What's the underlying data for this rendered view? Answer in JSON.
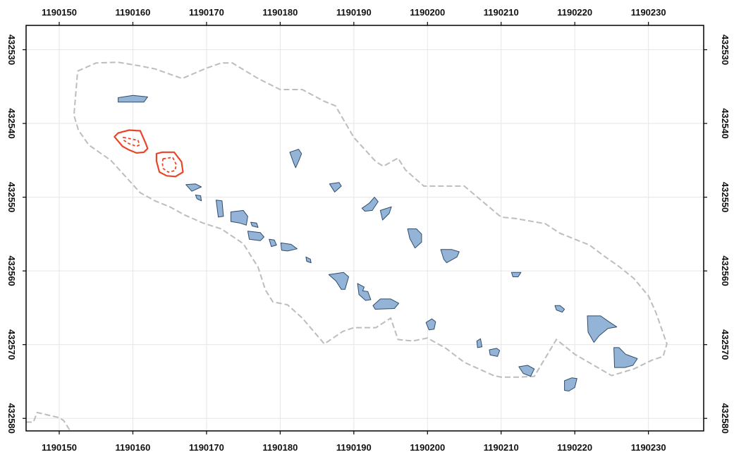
{
  "map": {
    "colors": {
      "background": "#ffffff",
      "frame": "#000000",
      "grid": "#e6e6e6",
      "boundary": "#bdbdbd",
      "polygon_fill": "#93b4d6",
      "polygon_stroke": "#2e4c6e",
      "highlight": "#e8462a"
    },
    "x_axis": {
      "range": [
        1190145.5,
        1190237.5
      ],
      "ticks": [
        1190150,
        1190160,
        1190170,
        1190180,
        1190190,
        1190200,
        1190210,
        1190220,
        1190230
      ],
      "labels": [
        "1190150",
        "1190160",
        "1190170",
        "1190180",
        "1190190",
        "1190200",
        "1190210",
        "1190220",
        "1190230"
      ]
    },
    "y_axis": {
      "range": [
        432526.7,
        432581.7
      ],
      "ticks": [
        432530,
        432540,
        432550,
        432560,
        432570,
        432580
      ],
      "labels": [
        "432530",
        "432540",
        "432550",
        "432560",
        "432570",
        "432580"
      ],
      "direction": "increasing-downward"
    },
    "grid": true,
    "boundary_polygon": [
      [
        1190152.5,
        432532.9
      ],
      [
        1190155,
        432531.8
      ],
      [
        1190158,
        432531.7
      ],
      [
        1190161,
        432532.2
      ],
      [
        1190163,
        432532.6
      ],
      [
        1190166.7,
        432533.9
      ],
      [
        1190170,
        432532.5
      ],
      [
        1190172,
        432531.8
      ],
      [
        1190173.5,
        432531.8
      ],
      [
        1190177,
        432533.9
      ],
      [
        1190180,
        432535.4
      ],
      [
        1190183,
        432535.4
      ],
      [
        1190186,
        432537
      ],
      [
        1190187.5,
        432537.6
      ],
      [
        1190190,
        432541.9
      ],
      [
        1190193,
        432545.2
      ],
      [
        1190194,
        432545.8
      ],
      [
        1190196,
        432544.7
      ],
      [
        1190197,
        432546.3
      ],
      [
        1190199.5,
        432548.5
      ],
      [
        1190201.5,
        432548.5
      ],
      [
        1190205,
        432548.5
      ],
      [
        1190210,
        432552.7
      ],
      [
        1190212,
        432552.9
      ],
      [
        1190216,
        432553.6
      ],
      [
        1190218,
        432554.9
      ],
      [
        1190222,
        432556.5
      ],
      [
        1190224,
        432558
      ],
      [
        1190226,
        432559.4
      ],
      [
        1190228,
        432561
      ],
      [
        1190230,
        432563.4
      ],
      [
        1190231,
        432565.6
      ],
      [
        1190232.5,
        432569.9
      ],
      [
        1190232,
        432571.6
      ],
      [
        1190230.5,
        432572.1
      ],
      [
        1190228,
        432573.3
      ],
      [
        1190225,
        432574.2
      ],
      [
        1190220,
        432571.3
      ],
      [
        1190217.5,
        432569.3
      ],
      [
        1190214.5,
        432574.3
      ],
      [
        1190212.5,
        432574.4
      ],
      [
        1190210,
        432574.4
      ],
      [
        1190209,
        432574.2
      ],
      [
        1190207,
        432573.3
      ],
      [
        1190205,
        432572.4
      ],
      [
        1190202.5,
        432570.5
      ],
      [
        1190200,
        432569.1
      ],
      [
        1190198,
        432569.5
      ],
      [
        1190196,
        432569.3
      ],
      [
        1190195,
        432566.4
      ],
      [
        1190193,
        432567.7
      ],
      [
        1190190,
        432567.7
      ],
      [
        1190188.5,
        432568.2
      ],
      [
        1190186,
        432569.9
      ],
      [
        1190183,
        432566.4
      ],
      [
        1190181,
        432564.6
      ],
      [
        1190179,
        432564.2
      ],
      [
        1190178,
        432562.6
      ],
      [
        1190177,
        432559.5
      ],
      [
        1190175,
        432556.3
      ],
      [
        1190172,
        432554.3
      ],
      [
        1190169.5,
        432553.5
      ],
      [
        1190167,
        432552.4
      ],
      [
        1190165,
        432551.3
      ],
      [
        1190163,
        432550.5
      ],
      [
        1190161,
        432549.4
      ],
      [
        1190159,
        432547.2
      ],
      [
        1190157,
        432545
      ],
      [
        1190154,
        432542.9
      ],
      [
        1190152.6,
        432540.9
      ],
      [
        1190152,
        432538.9
      ],
      [
        1190152.5,
        432532.9
      ]
    ],
    "boundary_corner_polygon": [
      [
        1190145.5,
        432580.5
      ],
      [
        1190146.5,
        432580.5
      ],
      [
        1190147,
        432579.2
      ],
      [
        1190150,
        432579.9
      ],
      [
        1190150.6,
        432580.3
      ],
      [
        1190151.5,
        432581.7
      ]
    ],
    "polygons": [
      [
        [
          1190158,
          432536.5
        ],
        [
          1190160,
          432536.2
        ],
        [
          1190162,
          432536.4
        ],
        [
          1190161.5,
          432537.1
        ],
        [
          1190158,
          432537.1
        ]
      ],
      [
        [
          1190167.2,
          432548.3
        ],
        [
          1190168.5,
          432548.2
        ],
        [
          1190169.3,
          432548.6
        ],
        [
          1190168,
          432549.2
        ]
      ],
      [
        [
          1190168.5,
          432549.7
        ],
        [
          1190169.2,
          432549.8
        ],
        [
          1190169.3,
          432550.5
        ],
        [
          1190168.7,
          432550.2
        ]
      ],
      [
        [
          1190171.3,
          432550.4
        ],
        [
          1190172.1,
          432550.5
        ],
        [
          1190172.3,
          432552.6
        ],
        [
          1190171.6,
          432552.7
        ]
      ],
      [
        [
          1190173.3,
          432552
        ],
        [
          1190175,
          432551.8
        ],
        [
          1190175.6,
          432552.6
        ],
        [
          1190175.4,
          432553.8
        ],
        [
          1190174.5,
          432553.5
        ],
        [
          1190173.3,
          432553.3
        ]
      ],
      [
        [
          1190176,
          432553.4
        ],
        [
          1190176.8,
          432553.5
        ],
        [
          1190177,
          432554.1
        ],
        [
          1190176.2,
          432553.9
        ]
      ],
      [
        [
          1190175.6,
          432554.6
        ],
        [
          1190177.3,
          432554.8
        ],
        [
          1190177.8,
          432555.4
        ],
        [
          1190177.3,
          432555.9
        ],
        [
          1190175.8,
          432555.7
        ]
      ],
      [
        [
          1190178.5,
          432555.7
        ],
        [
          1190179.2,
          432555.8
        ],
        [
          1190179.5,
          432556.5
        ],
        [
          1190178.8,
          432556.7
        ]
      ],
      [
        [
          1190180.1,
          432556.2
        ],
        [
          1190181.5,
          432556.4
        ],
        [
          1190182.3,
          432557
        ],
        [
          1190181,
          432557.3
        ],
        [
          1190180.2,
          432557.2
        ]
      ],
      [
        [
          1190181.3,
          432543.9
        ],
        [
          1190182.5,
          432543.5
        ],
        [
          1190182.9,
          432544.1
        ],
        [
          1190182.5,
          432545.1
        ],
        [
          1190182.1,
          432546
        ],
        [
          1190181.8,
          432545.3
        ]
      ],
      [
        [
          1190183.5,
          432558.1
        ],
        [
          1190184.1,
          432558.4
        ],
        [
          1190184.2,
          432558.9
        ],
        [
          1190183.6,
          432558.7
        ]
      ],
      [
        [
          1190186.7,
          432548.2
        ],
        [
          1190188,
          432548
        ],
        [
          1190188.3,
          432548.5
        ],
        [
          1190187.4,
          432549.3
        ]
      ],
      [
        [
          1190186.6,
          432560.5
        ],
        [
          1190188.6,
          432560.2
        ],
        [
          1190189.3,
          432560.8
        ],
        [
          1190188.8,
          432562.5
        ],
        [
          1190188.3,
          432562.5
        ],
        [
          1190187.6,
          432561.4
        ]
      ],
      [
        [
          1190190.5,
          432561.7
        ],
        [
          1190191.4,
          432562.2
        ],
        [
          1190191.2,
          432562.7
        ],
        [
          1190191.9,
          432562.8
        ],
        [
          1190192.3,
          432563.9
        ],
        [
          1190191.6,
          432564
        ],
        [
          1190190.7,
          432563.2
        ]
      ],
      [
        [
          1190191.1,
          432551.5
        ],
        [
          1190192.1,
          432550.8
        ],
        [
          1190192.8,
          432550
        ],
        [
          1190193.3,
          432550.6
        ],
        [
          1190192.5,
          432551.8
        ],
        [
          1190191.5,
          432551.9
        ]
      ],
      [
        [
          1190193.6,
          432551.8
        ],
        [
          1190195.1,
          432551.3
        ],
        [
          1190194.8,
          432552.2
        ],
        [
          1190193.9,
          432553.1
        ]
      ],
      [
        [
          1190192.6,
          432564.7
        ],
        [
          1190193.6,
          432563.8
        ],
        [
          1190195,
          432563.8
        ],
        [
          1190196.1,
          432564.4
        ],
        [
          1190195.5,
          432565.1
        ],
        [
          1190192.9,
          432565.2
        ]
      ],
      [
        [
          1190197.3,
          432554.3
        ],
        [
          1190198.5,
          432554.3
        ],
        [
          1190199.2,
          432555
        ],
        [
          1190199.2,
          432556.1
        ],
        [
          1190198.3,
          432556.9
        ],
        [
          1190197.6,
          432555.6
        ]
      ],
      [
        [
          1190201.8,
          432557.1
        ],
        [
          1190203.3,
          432557.1
        ],
        [
          1190204.3,
          432557.4
        ],
        [
          1190204,
          432558.1
        ],
        [
          1190202.6,
          432558.9
        ],
        [
          1190202.2,
          432558.4
        ]
      ],
      [
        [
          1190199.8,
          432567
        ],
        [
          1190200.6,
          432566.5
        ],
        [
          1190201.1,
          432566.9
        ],
        [
          1190200.9,
          432567.9
        ],
        [
          1190200.2,
          432568
        ]
      ],
      [
        [
          1190206.7,
          432569.5
        ],
        [
          1190207.2,
          432569.2
        ],
        [
          1190207.4,
          432570.3
        ],
        [
          1190206.8,
          432570.4
        ]
      ],
      [
        [
          1190208.4,
          432570.7
        ],
        [
          1190209.4,
          432570.5
        ],
        [
          1190209.8,
          432570.8
        ],
        [
          1190209.5,
          432571.6
        ],
        [
          1190208.5,
          432571.4
        ]
      ],
      [
        [
          1190211.4,
          432560.2
        ],
        [
          1190212.7,
          432560.2
        ],
        [
          1190212.3,
          432560.8
        ],
        [
          1190211.6,
          432560.8
        ]
      ],
      [
        [
          1190212.4,
          432573
        ],
        [
          1190213.6,
          432572.8
        ],
        [
          1190214.5,
          432573.3
        ],
        [
          1190214,
          432574.3
        ],
        [
          1190213,
          432573.9
        ]
      ],
      [
        [
          1190217.3,
          432564.7
        ],
        [
          1190218,
          432564.7
        ],
        [
          1190218.6,
          432565.2
        ],
        [
          1190218.3,
          432565.6
        ],
        [
          1190217.5,
          432565.3
        ]
      ],
      [
        [
          1190218.6,
          432574.9
        ],
        [
          1190219.6,
          432574.5
        ],
        [
          1190220.3,
          432574.6
        ],
        [
          1190220,
          432575.8
        ],
        [
          1190219.2,
          432576.3
        ],
        [
          1190218.6,
          432576.2
        ]
      ],
      [
        [
          1190221.7,
          432566.1
        ],
        [
          1190223.5,
          432566.1
        ],
        [
          1190224.5,
          432566.8
        ],
        [
          1190225.7,
          432567.6
        ],
        [
          1190224.5,
          432567.8
        ],
        [
          1190223.3,
          432568.8
        ],
        [
          1190222.6,
          432569.7
        ],
        [
          1190221.8,
          432568.3
        ]
      ],
      [
        [
          1190225.3,
          432570.4
        ],
        [
          1190226,
          432570.4
        ],
        [
          1190226.9,
          432571.3
        ],
        [
          1190228.5,
          432571.9
        ],
        [
          1190227.9,
          432572.8
        ],
        [
          1190226.8,
          432573.1
        ],
        [
          1190225.4,
          432573.1
        ]
      ]
    ],
    "highlights": [
      {
        "outer": [
          [
            1190157.5,
            432541.8
          ],
          [
            1190158,
            432541.3
          ],
          [
            1190159.5,
            432540.9
          ],
          [
            1190161,
            432541
          ],
          [
            1190161.7,
            432542.6
          ],
          [
            1190162,
            432543.4
          ],
          [
            1190161.5,
            432543.9
          ],
          [
            1190160.5,
            432544
          ],
          [
            1190159.5,
            432543.6
          ],
          [
            1190158.6,
            432543.1
          ]
        ],
        "inner": [
          [
            1190158.7,
            432541.9
          ],
          [
            1190159.8,
            432542.1
          ],
          [
            1190160.7,
            432542.3
          ],
          [
            1190160.9,
            432542.9
          ],
          [
            1190160.5,
            432543.1
          ],
          [
            1190159.4,
            432542.7
          ],
          [
            1190158.8,
            432542.3
          ]
        ]
      },
      {
        "outer": [
          [
            1190163.2,
            432544.1
          ],
          [
            1190164,
            432543.9
          ],
          [
            1190165.6,
            432543.9
          ],
          [
            1190166.6,
            432545.2
          ],
          [
            1190166.8,
            432546.6
          ],
          [
            1190165.8,
            432547.2
          ],
          [
            1190164.6,
            432547.1
          ],
          [
            1190163.6,
            432546.6
          ],
          [
            1190163.2,
            432545.1
          ]
        ],
        "inner": [
          [
            1190164.1,
            432544.8
          ],
          [
            1190165.4,
            432544.6
          ],
          [
            1190165.9,
            432545.6
          ],
          [
            1190165.7,
            432546.4
          ],
          [
            1190164.8,
            432546.6
          ],
          [
            1190164.1,
            432546.1
          ],
          [
            1190164,
            432545.3
          ]
        ]
      }
    ]
  }
}
